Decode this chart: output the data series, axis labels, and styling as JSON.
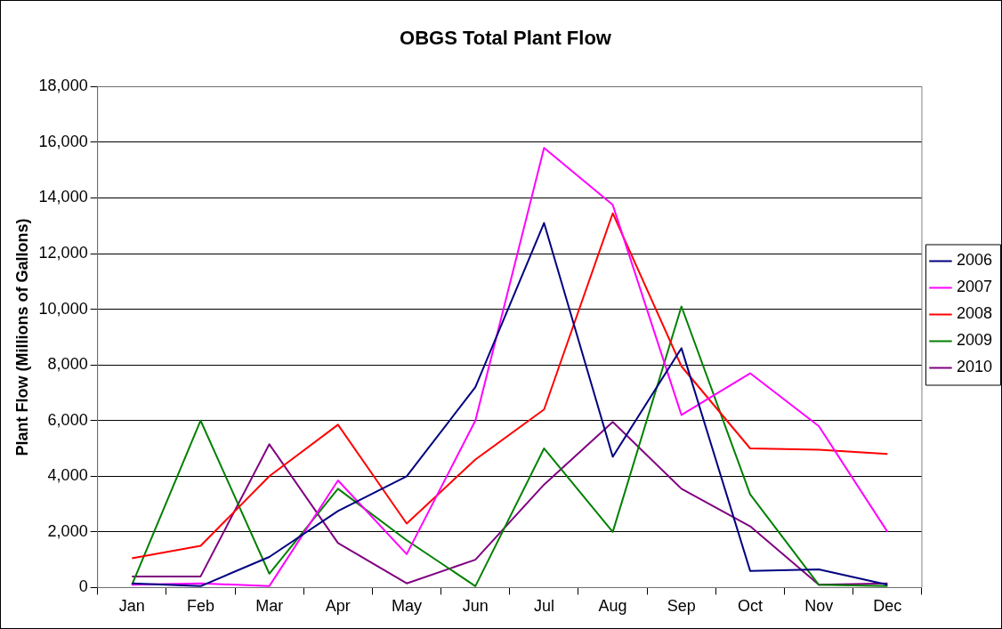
{
  "chart_data": {
    "type": "line",
    "title": "OBGS Total Plant Flow",
    "ylabel": "Plant Flow (Millions of Gallons)",
    "categories": [
      "Jan",
      "Feb",
      "Mar",
      "Apr",
      "May",
      "Jun",
      "Jul",
      "Aug",
      "Sep",
      "Oct",
      "Nov",
      "Dec"
    ],
    "series": [
      {
        "name": "2006",
        "color": "#000080",
        "values": [
          150,
          50,
          1100,
          2750,
          4000,
          7200,
          13100,
          4700,
          8600,
          600,
          650,
          100
        ]
      },
      {
        "name": "2007",
        "color": "#ff00ff",
        "values": [
          100,
          150,
          50,
          3850,
          1200,
          6000,
          15800,
          13750,
          6200,
          7700,
          5800,
          2000
        ]
      },
      {
        "name": "2008",
        "color": "#ff0000",
        "values": [
          1050,
          1500,
          4000,
          5850,
          2300,
          4600,
          6400,
          13450,
          7950,
          5000,
          4950,
          4800
        ]
      },
      {
        "name": "2009",
        "color": "#008000",
        "values": [
          100,
          6000,
          500,
          3550,
          1700,
          50,
          5000,
          2000,
          10100,
          3350,
          100,
          50
        ]
      },
      {
        "name": "2010",
        "color": "#800080",
        "values": [
          400,
          400,
          5150,
          1600,
          150,
          1000,
          3700,
          5950,
          3550,
          2200,
          100,
          150
        ]
      }
    ],
    "ylim": [
      0,
      18000
    ],
    "yticks": [
      0,
      {
        "value": 2000,
        "label": "2,000"
      },
      {
        "value": 4000,
        "label": "4,000"
      },
      {
        "value": 6000,
        "label": "6,000"
      },
      {
        "value": 8000,
        "label": "8,000"
      },
      {
        "value": 10000,
        "label": "10,000"
      },
      {
        "value": 12000,
        "label": "12,000"
      },
      {
        "value": 14000,
        "label": "14,000"
      },
      {
        "value": 16000,
        "label": "16,000"
      },
      {
        "value": 18000,
        "label": "18,000"
      }
    ],
    "grid": "y",
    "legend": "right",
    "marker": "none",
    "line_style": "solid"
  }
}
